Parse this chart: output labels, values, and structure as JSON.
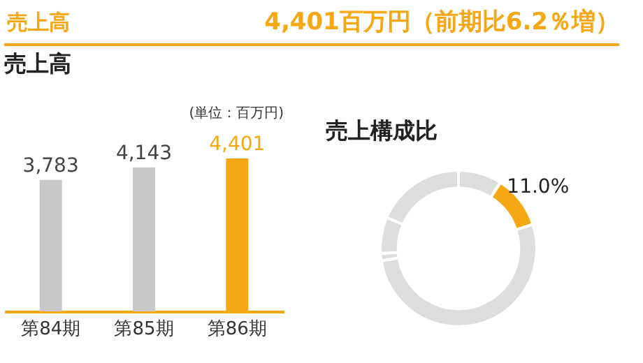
{
  "chart_data": [
    {
      "type": "bar",
      "title": "売上高",
      "annotations": [
        "売上高",
        "4,401百万円（前期比6.2％増）",
        "(単位：百万円)"
      ],
      "categories": [
        "第84期",
        "第85期",
        "第86期"
      ],
      "values": [
        3783,
        4143,
        4401
      ],
      "colors": [
        "#c8c8c8",
        "#c8c8c8",
        "#f5a714"
      ],
      "value_labels": [
        "3,783",
        "4,143",
        "4,401"
      ]
    },
    {
      "type": "donut",
      "title": "売上構成比",
      "categories": [
        null,
        null,
        null,
        null,
        null,
        null
      ],
      "values": [
        9,
        11,
        52.5,
        1.5,
        7.5,
        18.5
      ],
      "colors": [
        "#dcdddd",
        "#f5a714",
        "#dcdddd",
        "#dcdddd",
        "#dcdddd",
        "#dcdddd"
      ],
      "value_labels": [
        null,
        "11.0%",
        null,
        null,
        null,
        null
      ]
    }
  ]
}
